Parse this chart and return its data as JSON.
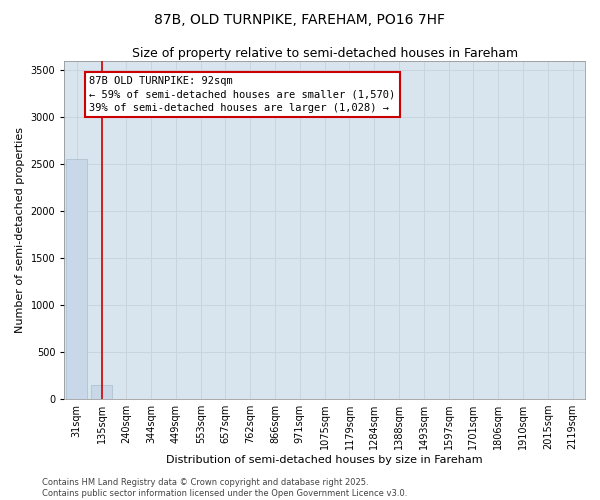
{
  "title": "87B, OLD TURNPIKE, FAREHAM, PO16 7HF",
  "subtitle": "Size of property relative to semi-detached houses in Fareham",
  "xlabel": "Distribution of semi-detached houses by size in Fareham",
  "ylabel": "Number of semi-detached properties",
  "categories": [
    "31sqm",
    "135sqm",
    "240sqm",
    "344sqm",
    "449sqm",
    "553sqm",
    "657sqm",
    "762sqm",
    "866sqm",
    "971sqm",
    "1075sqm",
    "1179sqm",
    "1284sqm",
    "1388sqm",
    "1493sqm",
    "1597sqm",
    "1701sqm",
    "1806sqm",
    "1910sqm",
    "2015sqm",
    "2119sqm"
  ],
  "values": [
    2550,
    150,
    3,
    1,
    1,
    1,
    1,
    1,
    1,
    1,
    1,
    1,
    1,
    1,
    1,
    1,
    1,
    1,
    1,
    1,
    1
  ],
  "bar_color": "#c8d8e8",
  "bar_edge_color": "#aabccc",
  "grid_color": "#c8d4de",
  "background_color": "#d8e4ee",
  "vline_x": 1,
  "vline_color": "#cc0000",
  "annotation_text": "87B OLD TURNPIKE: 92sqm\n← 59% of semi-detached houses are smaller (1,570)\n39% of semi-detached houses are larger (1,028) →",
  "ylim": [
    0,
    3600
  ],
  "yticks": [
    0,
    500,
    1000,
    1500,
    2000,
    2500,
    3000,
    3500
  ],
  "footer": "Contains HM Land Registry data © Crown copyright and database right 2025.\nContains public sector information licensed under the Open Government Licence v3.0.",
  "title_fontsize": 10,
  "subtitle_fontsize": 9,
  "axis_label_fontsize": 8,
  "tick_fontsize": 7,
  "footer_fontsize": 6
}
